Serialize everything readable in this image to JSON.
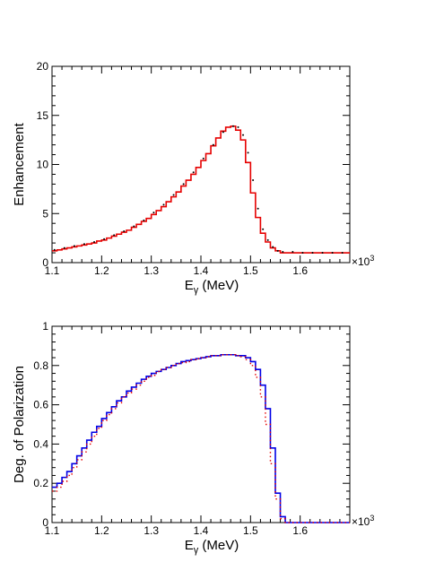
{
  "chart_data": [
    {
      "type": "line",
      "title": "",
      "xlabel": "E",
      "xlabel_sub": "γ",
      "xlabel_unit": " (MeV)",
      "ylabel": "Enhancement",
      "x_multiplier": "×10",
      "x_multiplier_exp": "3",
      "xlim": [
        1.1,
        1.7
      ],
      "ylim": [
        0,
        20
      ],
      "x_ticks": [
        "1.1",
        "1.2",
        "1.3",
        "1.4",
        "1.5",
        "1.6"
      ],
      "y_ticks": [
        "0",
        "5",
        "10",
        "15",
        "20"
      ],
      "grid": false,
      "series": [
        {
          "style": "step",
          "color": "#e60000",
          "x": [
            1.1,
            1.11,
            1.12,
            1.13,
            1.14,
            1.15,
            1.16,
            1.17,
            1.18,
            1.19,
            1.2,
            1.21,
            1.22,
            1.23,
            1.24,
            1.25,
            1.26,
            1.27,
            1.28,
            1.29,
            1.3,
            1.31,
            1.32,
            1.33,
            1.34,
            1.35,
            1.36,
            1.37,
            1.38,
            1.39,
            1.4,
            1.41,
            1.42,
            1.43,
            1.44,
            1.45,
            1.46,
            1.47,
            1.48,
            1.49,
            1.5,
            1.51,
            1.52,
            1.53,
            1.54,
            1.55,
            1.56,
            1.57,
            1.58,
            1.59,
            1.6,
            1.61,
            1.62,
            1.63,
            1.64,
            1.65,
            1.66,
            1.67,
            1.68,
            1.69,
            1.7
          ],
          "y": [
            1.2,
            1.3,
            1.4,
            1.5,
            1.6,
            1.7,
            1.8,
            1.9,
            2.0,
            2.2,
            2.3,
            2.5,
            2.7,
            2.9,
            3.1,
            3.3,
            3.6,
            3.9,
            4.2,
            4.5,
            4.9,
            5.3,
            5.7,
            6.2,
            6.7,
            7.2,
            7.8,
            8.4,
            9.0,
            9.7,
            10.4,
            11.1,
            11.9,
            12.7,
            13.4,
            13.8,
            13.9,
            13.5,
            12.5,
            10.2,
            7.1,
            4.6,
            3.0,
            2.1,
            1.5,
            1.2,
            1.0,
            1.0,
            1.0,
            1.0,
            1.0,
            1.0,
            1.0,
            1.0,
            1.0,
            1.0,
            1.0,
            1.0,
            1.0,
            1.0,
            1.0
          ]
        },
        {
          "style": "points",
          "color": "#000000",
          "x": [
            1.105,
            1.125,
            1.145,
            1.165,
            1.185,
            1.205,
            1.225,
            1.245,
            1.265,
            1.285,
            1.305,
            1.325,
            1.345,
            1.365,
            1.385,
            1.405,
            1.425,
            1.445,
            1.465,
            1.475,
            1.485,
            1.495,
            1.505,
            1.515,
            1.525,
            1.535,
            1.545,
            1.555,
            1.565,
            1.585,
            1.605,
            1.625,
            1.645,
            1.665,
            1.685
          ],
          "y": [
            1.3,
            1.5,
            1.7,
            1.9,
            2.1,
            2.4,
            2.8,
            3.2,
            3.7,
            4.3,
            5.1,
            5.9,
            6.9,
            8.0,
            9.2,
            10.6,
            12.0,
            13.3,
            13.9,
            13.8,
            13.0,
            11.2,
            8.4,
            5.5,
            3.4,
            2.3,
            1.6,
            1.2,
            1.1,
            1.1,
            1.0,
            1.0,
            1.0,
            1.0,
            1.0
          ]
        }
      ]
    },
    {
      "type": "line",
      "title": "",
      "xlabel": "E",
      "xlabel_sub": "γ",
      "xlabel_unit": " (MeV)",
      "ylabel": "Deg. of Polarization",
      "x_multiplier": "×10",
      "x_multiplier_exp": "3",
      "xlim": [
        1.1,
        1.7
      ],
      "ylim": [
        0,
        1
      ],
      "x_ticks": [
        "1.1",
        "1.2",
        "1.3",
        "1.4",
        "1.5",
        "1.6"
      ],
      "y_ticks": [
        "0",
        "0.2",
        "0.4",
        "0.6",
        "0.8",
        "1"
      ],
      "grid": false,
      "series": [
        {
          "style": "step",
          "color": "#0000e6",
          "x": [
            1.1,
            1.11,
            1.12,
            1.13,
            1.14,
            1.15,
            1.16,
            1.17,
            1.18,
            1.19,
            1.2,
            1.21,
            1.22,
            1.23,
            1.24,
            1.25,
            1.26,
            1.27,
            1.28,
            1.29,
            1.3,
            1.31,
            1.32,
            1.33,
            1.34,
            1.35,
            1.36,
            1.37,
            1.38,
            1.39,
            1.4,
            1.41,
            1.42,
            1.43,
            1.44,
            1.45,
            1.46,
            1.47,
            1.48,
            1.49,
            1.5,
            1.51,
            1.52,
            1.53,
            1.54,
            1.55,
            1.56,
            1.57,
            1.58,
            1.59,
            1.6,
            1.61,
            1.62,
            1.63,
            1.64,
            1.65,
            1.66,
            1.67,
            1.68,
            1.69,
            1.7
          ],
          "y": [
            0.18,
            0.2,
            0.23,
            0.26,
            0.3,
            0.34,
            0.38,
            0.42,
            0.46,
            0.49,
            0.53,
            0.56,
            0.59,
            0.62,
            0.64,
            0.67,
            0.69,
            0.71,
            0.73,
            0.745,
            0.76,
            0.77,
            0.78,
            0.79,
            0.8,
            0.81,
            0.82,
            0.825,
            0.83,
            0.835,
            0.84,
            0.845,
            0.85,
            0.85,
            0.855,
            0.855,
            0.855,
            0.85,
            0.85,
            0.84,
            0.82,
            0.78,
            0.7,
            0.58,
            0.38,
            0.15,
            0.03,
            0.0,
            0.0,
            0.0,
            0.0,
            0.0,
            0.0,
            0.0,
            0.0,
            0.0,
            0.0,
            0.0,
            0.0,
            0.0,
            0.0
          ]
        },
        {
          "style": "dotted",
          "color": "#e60000",
          "x": [
            1.1,
            1.11,
            1.12,
            1.13,
            1.14,
            1.15,
            1.16,
            1.17,
            1.18,
            1.19,
            1.2,
            1.21,
            1.22,
            1.23,
            1.24,
            1.25,
            1.26,
            1.27,
            1.28,
            1.29,
            1.3,
            1.31,
            1.32,
            1.33,
            1.34,
            1.35,
            1.36,
            1.37,
            1.38,
            1.39,
            1.4,
            1.41,
            1.42,
            1.43,
            1.44,
            1.45,
            1.46,
            1.47,
            1.48,
            1.49,
            1.5,
            1.51,
            1.52,
            1.53,
            1.54,
            1.55,
            1.56,
            1.57,
            1.58,
            1.59,
            1.6,
            1.61,
            1.62,
            1.63,
            1.64,
            1.65,
            1.66,
            1.67,
            1.68,
            1.69,
            1.7
          ],
          "y": [
            0.16,
            0.18,
            0.21,
            0.24,
            0.28,
            0.32,
            0.36,
            0.4,
            0.44,
            0.48,
            0.52,
            0.55,
            0.58,
            0.61,
            0.64,
            0.66,
            0.68,
            0.7,
            0.72,
            0.74,
            0.75,
            0.77,
            0.78,
            0.79,
            0.8,
            0.81,
            0.815,
            0.82,
            0.83,
            0.835,
            0.84,
            0.845,
            0.85,
            0.85,
            0.855,
            0.855,
            0.855,
            0.85,
            0.845,
            0.83,
            0.8,
            0.74,
            0.64,
            0.5,
            0.3,
            0.12,
            0.02,
            0.0,
            0.0,
            0.0,
            0.0,
            0.0,
            0.0,
            0.0,
            0.0,
            0.0,
            0.0,
            0.0,
            0.0,
            0.0,
            0.0
          ]
        }
      ]
    }
  ]
}
